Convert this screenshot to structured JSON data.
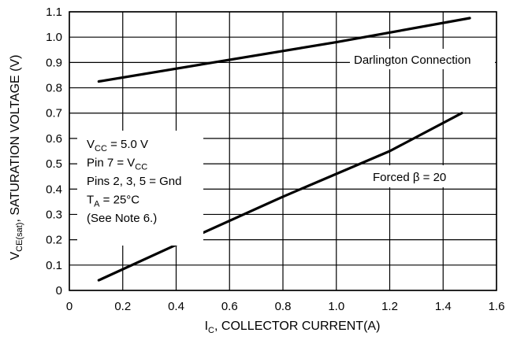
{
  "chart_data": {
    "type": "line",
    "xlabel_main": "I",
    "xlabel_sub": "C",
    "xlabel_rest": ", COLLECTOR CURRENT(A)",
    "ylabel_main": "V",
    "ylabel_sub": "CE(sat)",
    "ylabel_rest": ", SATURATION VOLTAGE (V)",
    "xlim": [
      0,
      1.6
    ],
    "ylim": [
      0,
      1.1
    ],
    "grid": true,
    "x_ticks": [
      "0",
      "0.2",
      "0.4",
      "0.6",
      "0.8",
      "1.0",
      "1.2",
      "1.4",
      "1.6"
    ],
    "y_ticks": [
      "0",
      "0.1",
      "0.2",
      "0.3",
      "0.4",
      "0.5",
      "0.6",
      "0.7",
      "0.8",
      "0.9",
      "1.0",
      "1.1"
    ],
    "series": [
      {
        "name": "Darlington Connection",
        "x": [
          0.11,
          0.5,
          1.0,
          1.5
        ],
        "y": [
          0.825,
          0.893,
          0.98,
          1.075
        ]
      },
      {
        "name": "Forced β = 20",
        "x": [
          0.11,
          0.4,
          0.8,
          1.2,
          1.47
        ],
        "y": [
          0.04,
          0.18,
          0.37,
          0.55,
          0.7
        ]
      }
    ],
    "annotations": {
      "conditions": [
        {
          "main": "V",
          "sub": "CC",
          "rest": " = 5.0 V"
        },
        {
          "main": "Pin 7 = V",
          "sub": "CC",
          "rest": ""
        },
        {
          "main": "Pins 2, 3, 5 = Gnd",
          "sub": "",
          "rest": ""
        },
        {
          "main": "T",
          "sub": "A",
          "rest": " = 25°C"
        },
        {
          "main": "(See Note 6.)",
          "sub": "",
          "rest": ""
        }
      ]
    }
  },
  "colors": {
    "line": "#000000",
    "grid": "#000000",
    "background": "#ffffff"
  }
}
